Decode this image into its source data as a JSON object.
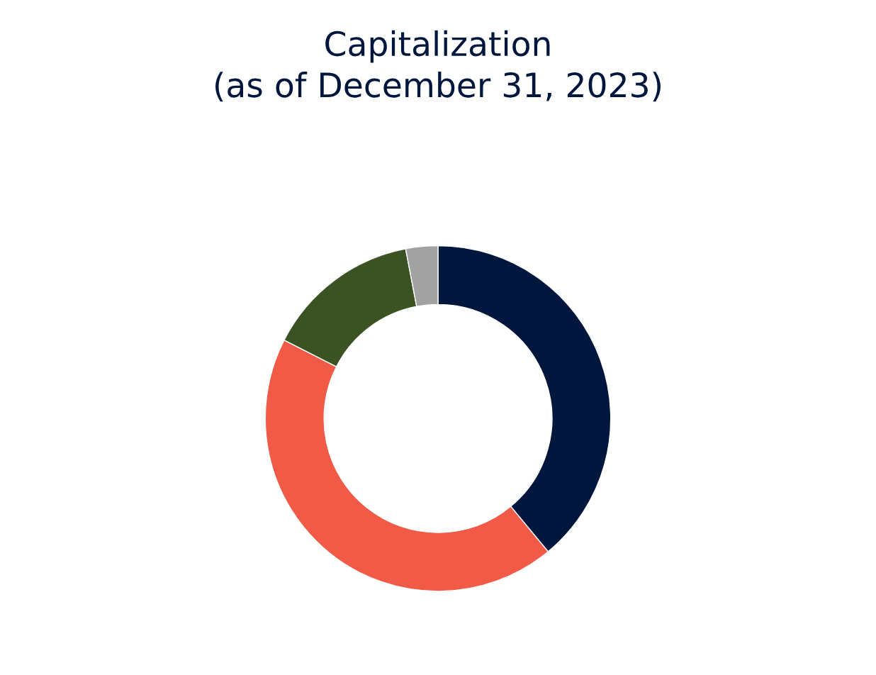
{
  "chart_data": {
    "type": "donut",
    "title": "Capitalization\n(as of December 31, 2023)",
    "categories": [
      null,
      null,
      null,
      null
    ],
    "values": [
      39,
      43.5,
      14.5,
      3
    ],
    "colors": [
      "#00173d",
      "#f05a46",
      "#3b5323",
      "#a2a2a2"
    ],
    "legend": false
  }
}
